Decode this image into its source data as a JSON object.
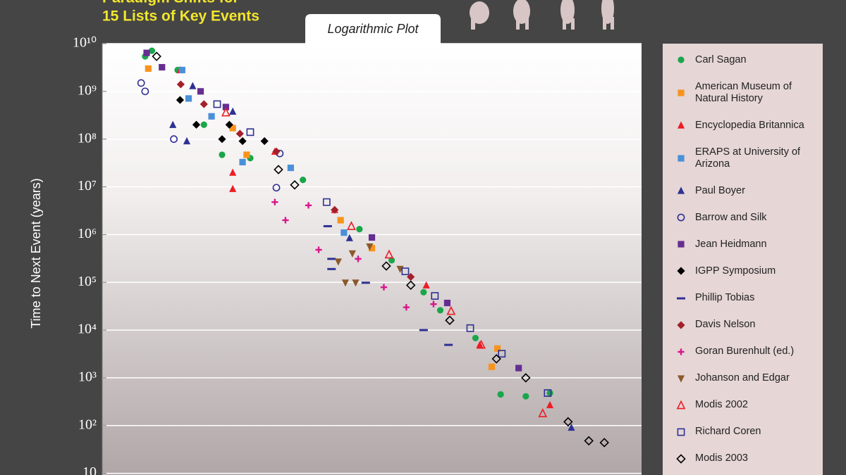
{
  "chart_data": {
    "type": "scatter",
    "title": "Paradigm Shifts for",
    "subtitle": "15 Lists of Key Events",
    "annotation": "Logarithmic Plot",
    "y_label": "Time to Next Event (years)",
    "xscale": "log",
    "yscale": "log",
    "xlim": [
      100000000000,
      10
    ],
    "ylim": [
      10,
      10000000000
    ],
    "yticks": [
      {
        "value": 10000000000,
        "label": "10¹⁰"
      },
      {
        "value": 1000000000,
        "label": "10⁹"
      },
      {
        "value": 100000000,
        "label": "10⁸"
      },
      {
        "value": 10000000,
        "label": "10⁷"
      },
      {
        "value": 1000000,
        "label": "10⁶"
      },
      {
        "value": 100000,
        "label": "10⁵"
      },
      {
        "value": 10000,
        "label": "10⁴"
      },
      {
        "value": 1000,
        "label": "10³"
      },
      {
        "value": 100,
        "label": "10²"
      },
      10
    ],
    "grid": true,
    "legend": "right",
    "series": [
      {
        "name": "Carl Sagan",
        "color": "#1aa64a",
        "marker": "circle",
        "x": [
          16000000000,
          12000000000,
          4000000000,
          1300000000,
          600000000,
          180000000,
          19000000,
          1700000,
          430000,
          110000,
          54000,
          12000,
          4100,
          1400,
          500
        ],
        "values": [
          5400000000,
          7100000000,
          2800000000,
          200000000,
          47000000,
          40000000,
          14000000,
          1300000,
          290000,
          62000,
          26000,
          6800,
          450,
          410,
          480
        ]
      },
      {
        "name": "American Museum of Natural History",
        "color": "#f7941d",
        "marker": "square",
        "x": [
          14000000000,
          380000000,
          210000000,
          3800000,
          1000000,
          6000,
          4700
        ],
        "values": [
          3000000000,
          170000000,
          47000000,
          2000000,
          520000,
          1700,
          4100
        ]
      },
      {
        "name": "Encyclopedia Britannica",
        "color": "#ed1c24",
        "marker": "triangle",
        "x": [
          3600000000,
          380000000,
          380000000,
          63000000,
          4900000,
          98000,
          10000,
          500
        ],
        "values": [
          2800000000,
          9100000,
          20000000,
          55000000,
          3300000,
          87000,
          4900,
          270
        ]
      },
      {
        "name": "ERAPS at University of Arizona",
        "color": "#4a90d9",
        "marker": "square",
        "x": [
          3300000000,
          2500000000,
          940000000,
          250000000,
          32000000,
          3300000
        ],
        "values": [
          2800000000,
          710000000,
          300000000,
          33000000,
          25000000,
          1100000
        ]
      },
      {
        "name": "Paul Boyer",
        "color": "#2e3192",
        "marker": "triangle",
        "x": [
          4900000000,
          2700000000,
          2100000000,
          380000000,
          2600000,
          200
        ],
        "values": [
          200000000,
          91000000,
          1300000000,
          380000000,
          850000,
          91
        ]
      },
      {
        "name": "Barrow and Silk",
        "color": "#2e3192",
        "marker": "open-circle",
        "x": [
          19000000000,
          16000000000,
          4700000000,
          51000000,
          59000000
        ],
        "values": [
          1500000000,
          1000000000,
          100000000,
          50000000,
          9600000
        ]
      },
      {
        "name": "Jean Heidmann",
        "color": "#662d91",
        "marker": "square",
        "x": [
          15000000000,
          7800000000,
          1500000000,
          510000000,
          1000000,
          40000,
          1900
        ],
        "values": [
          6400000000,
          3200000000,
          1000000000,
          470000000,
          870000,
          37000,
          1600
        ]
      },
      {
        "name": "IGPP Symposium",
        "color": "#000000",
        "marker": "diamond",
        "x": [
          3600000000,
          1800000000,
          440000000,
          600000000,
          98000000,
          250000000
        ],
        "values": [
          660000000,
          200000000,
          200000000,
          100000000,
          91000000,
          91000000
        ]
      },
      {
        "name": "Phillip Tobias",
        "color": "#2e3192",
        "marker": "dash",
        "x": [
          6600000,
          5600000,
          5600000,
          1300000,
          110000,
          38000
        ],
        "values": [
          1500000,
          190000,
          310000,
          98000,
          10000,
          4900
        ]
      },
      {
        "name": "Davis Nelson",
        "color": "#a3202a",
        "marker": "diamond",
        "x": [
          3500000000,
          1300000000,
          280000000,
          59000000,
          4900000,
          190000
        ],
        "values": [
          1400000000,
          540000000,
          130000000,
          55000000,
          3300000,
          130000
        ]
      },
      {
        "name": "Goran Burenhult (ed.)",
        "color": "#d8168a",
        "marker": "plus",
        "x": [
          63000000,
          40000000,
          15000000,
          9700000,
          1800000,
          600000,
          230000,
          72000
        ],
        "values": [
          4800000,
          2000000,
          4100000,
          480000,
          310000,
          79000,
          30000,
          35000
        ]
      },
      {
        "name": "Johanson and Edgar",
        "color": "#8b5a2b",
        "marker": "triangle-down",
        "x": [
          4200000,
          3100000,
          2000000,
          2300000,
          1100000,
          300000
        ],
        "values": [
          270000,
          98000,
          98000,
          400000,
          560000,
          190000
        ]
      },
      {
        "name": "Modis 2002",
        "color": "#ed1c24",
        "marker": "open-triangle",
        "x": [
          510000000,
          2400000,
          480000,
          34000,
          9400,
          680
        ],
        "values": [
          360000000,
          1500000,
          380000,
          25000,
          4900,
          180
        ]
      },
      {
        "name": "Richard Coren",
        "color": "#2e3192",
        "marker": "open-square",
        "x": [
          740000000,
          180000000,
          6900000,
          240000,
          68000,
          15000,
          3900,
          550
        ],
        "values": [
          540000000,
          140000000,
          4800000,
          170000,
          52000,
          11000,
          3200,
          480
        ]
      },
      {
        "name": "Modis 2003",
        "color": "#000000",
        "marker": "open-diamond",
        "x": [
          9800000000,
          54000000,
          27000000,
          540000,
          190000,
          36000,
          4900,
          1400,
          230,
          95,
          49
        ],
        "values": [
          5400000000,
          23000000,
          11000000,
          220000,
          87000,
          16000,
          2500,
          1000,
          120,
          48,
          44
        ]
      }
    ]
  }
}
